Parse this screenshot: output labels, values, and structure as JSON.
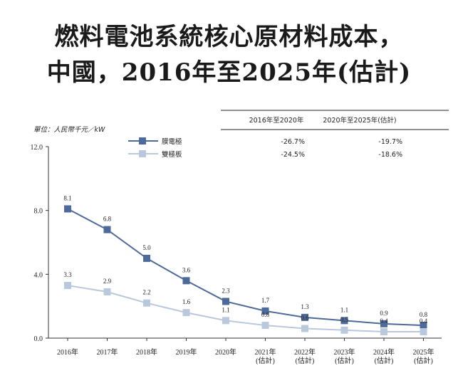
{
  "title": {
    "line1": "燃料電池系統核心原材料成本，",
    "line2": "中國，2016年至2025年(估計)"
  },
  "colors": {
    "membrane": "#4d6a9a",
    "bipolar": "#bac8dd",
    "axis": "#333333"
  },
  "chart_data": {
    "type": "line",
    "unit_label": "單位：人民幣千元／kW",
    "categories": [
      "2016年",
      "2017年",
      "2018年",
      "2019年",
      "2020年",
      "2021年\n(估計)",
      "2022年\n(估計)",
      "2023年\n(估計)",
      "2024年\n(估計)",
      "2025年\n(估計)"
    ],
    "series": [
      {
        "name": "膜電極",
        "values": [
          8.1,
          6.8,
          5.0,
          3.6,
          2.3,
          1.7,
          1.3,
          1.1,
          0.9,
          0.8
        ],
        "labels": [
          "8.1",
          "6.8",
          "5.0",
          "3.6",
          "2.3",
          "1.7",
          "1.3",
          "1.1",
          "0.9",
          "0.8"
        ]
      },
      {
        "name": "雙極板",
        "values": [
          3.3,
          2.9,
          2.2,
          1.6,
          1.1,
          0.8,
          0.6,
          0.5,
          0.4,
          0.4
        ],
        "labels": [
          "3.3",
          "2.9",
          "2.2",
          "1.6",
          "1.1",
          "0.8",
          "0.6",
          "0.5",
          "0.4",
          "0.4"
        ]
      }
    ],
    "ylim": [
      0,
      12
    ],
    "yticks": [
      "0.0",
      "4.0",
      "8.0",
      "12.0"
    ],
    "ytick_values": [
      0,
      4,
      8,
      12
    ],
    "cagr_table": {
      "headers": [
        "2016年至2020年",
        "2020年至2025年(估計)"
      ],
      "rows": [
        {
          "name": "膜電極",
          "values": [
            "-26.7%",
            "-19.7%"
          ]
        },
        {
          "name": "雙極板",
          "values": [
            "-24.5%",
            "-18.6%"
          ]
        }
      ]
    },
    "legend_position": "top-left"
  }
}
